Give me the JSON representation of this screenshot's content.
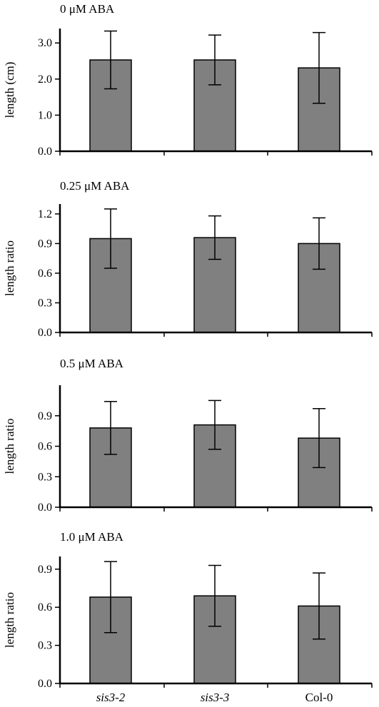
{
  "chart_data": [
    {
      "type": "bar",
      "title": "0 μM ABA",
      "ylabel": "length (cm)",
      "categories": [
        "sis3-2",
        "sis3-3",
        "Col-0"
      ],
      "values": [
        2.53,
        2.53,
        2.31
      ],
      "errors": [
        0.8,
        0.69,
        0.98
      ],
      "ylim": [
        0,
        3.4
      ],
      "yticks": [
        0.0,
        1.0,
        2.0,
        3.0
      ],
      "ytick_labels": [
        "0.0",
        "1.0",
        "2.0",
        "3.0"
      ],
      "bar_color": "#808080",
      "show_category_labels": false,
      "grid": false
    },
    {
      "type": "bar",
      "title": "0.25 μM ABA",
      "ylabel": "length ratio",
      "categories": [
        "sis3-2",
        "sis3-3",
        "Col-0"
      ],
      "values": [
        0.95,
        0.96,
        0.9
      ],
      "errors": [
        0.3,
        0.22,
        0.26
      ],
      "ylim": [
        0,
        1.3
      ],
      "yticks": [
        0.0,
        0.3,
        0.6,
        0.9,
        1.2
      ],
      "ytick_labels": [
        "0.0",
        "0.3",
        "0.6",
        "0.9",
        "1.2"
      ],
      "bar_color": "#808080",
      "show_category_labels": false,
      "grid": false
    },
    {
      "type": "bar",
      "title": "0.5 μM ABA",
      "ylabel": "length ratio",
      "categories": [
        "sis3-2",
        "sis3-3",
        "Col-0"
      ],
      "values": [
        0.78,
        0.81,
        0.68
      ],
      "errors": [
        0.26,
        0.24,
        0.29
      ],
      "ylim": [
        0,
        1.2
      ],
      "yticks": [
        0.0,
        0.3,
        0.6,
        0.9
      ],
      "ytick_labels": [
        "0.0",
        "0.3",
        "0.6",
        "0.9"
      ],
      "bar_color": "#808080",
      "show_category_labels": false,
      "grid": false
    },
    {
      "type": "bar",
      "title": "1.0 μM ABA",
      "ylabel": "length ratio",
      "categories": [
        "sis3-2",
        "sis3-3",
        "Col-0"
      ],
      "values": [
        0.68,
        0.69,
        0.61
      ],
      "errors": [
        0.28,
        0.24,
        0.26
      ],
      "ylim": [
        0,
        1.0
      ],
      "yticks": [
        0.0,
        0.3,
        0.6,
        0.9
      ],
      "ytick_labels": [
        "0.0",
        "0.3",
        "0.6",
        "0.9"
      ],
      "bar_color": "#808080",
      "show_category_labels": true,
      "category_label_style": [
        "italic",
        "italic",
        "normal"
      ],
      "grid": false
    }
  ]
}
